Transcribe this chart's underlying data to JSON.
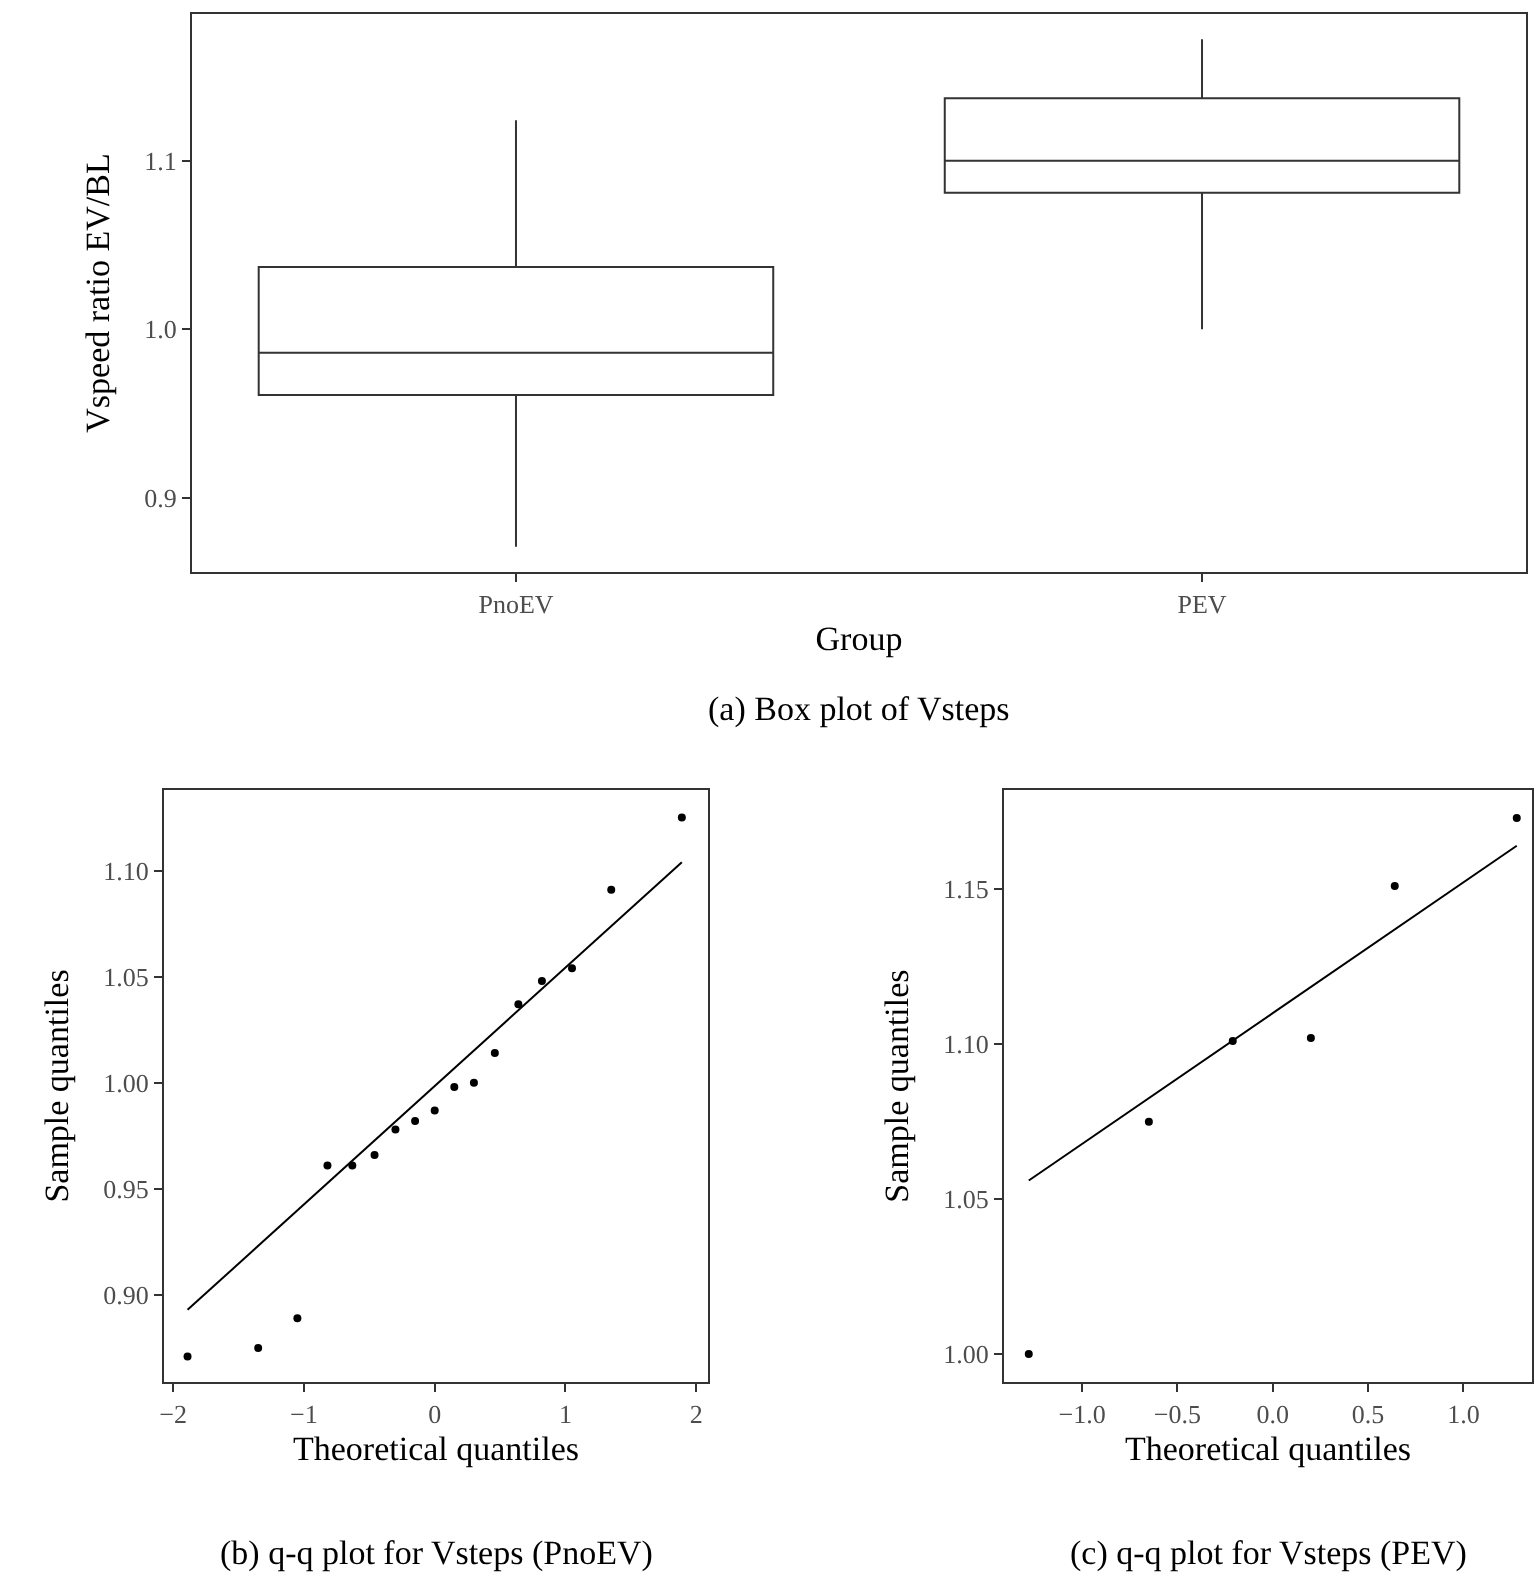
{
  "chart_data": [
    {
      "type": "box",
      "categories": [
        "PnoEV",
        "PEV"
      ],
      "boxes": [
        {
          "low": 0.871,
          "q1": 0.961,
          "median": 0.986,
          "q3": 1.037,
          "high": 1.124
        },
        {
          "low": 1.0,
          "q1": 1.081,
          "median": 1.1,
          "q3": 1.137,
          "high": 1.172
        }
      ],
      "xlabel": "Group",
      "ylabel": "Vspeed ratio EV/BL",
      "ylim": [
        0.856,
        1.187
      ],
      "yticks": [
        0.9,
        {
          "value": 1,
          "label": "1.0"
        },
        1.1
      ],
      "grid": false,
      "annotations": [
        "(a) Box plot of Vsteps"
      ]
    },
    {
      "type": "scatter",
      "xlabel": "Theoretical quantiles",
      "ylabel": "Sample quantiles",
      "xlim": [
        -2.07,
        2.09
      ],
      "xticks": [
        {
          "value": -2,
          "label": "−2"
        },
        {
          "value": -1,
          "label": "−1"
        },
        0,
        1,
        2
      ],
      "ylim": [
        0.859,
        1.138
      ],
      "yticks": [
        {
          "value": 0.9,
          "label": "0.90"
        },
        0.95,
        {
          "value": 1,
          "label": "1.00"
        },
        1.05,
        {
          "value": 1.1,
          "label": "1.10"
        }
      ],
      "grid": false,
      "annotations": [
        "(b) q-q plot for Vsteps (PnoEV)"
      ],
      "series": [
        {
          "type": "scatter",
          "color": "#000000",
          "marker": "circle",
          "x": [
            -1.89,
            -1.35,
            -1.05,
            -0.82,
            -0.63,
            -0.46,
            -0.3,
            -0.15,
            0,
            0.15,
            0.3,
            0.46,
            0.64,
            0.82,
            1.05,
            1.35,
            1.89
          ],
          "values": [
            0.871,
            0.875,
            0.889,
            0.961,
            0.961,
            0.966,
            0.978,
            0.982,
            0.987,
            0.998,
            1.0,
            1.014,
            1.037,
            1.048,
            1.054,
            1.091,
            1.125
          ]
        },
        {
          "type": "line",
          "color": "#000000",
          "marker": "none",
          "x": [
            -1.89,
            1.89
          ],
          "values": [
            0.893,
            1.104
          ]
        }
      ]
    },
    {
      "type": "scatter",
      "xlabel": "Theoretical quantiles",
      "ylabel": "Sample quantiles",
      "xlim": [
        -1.41,
        1.36
      ],
      "xticks": [
        {
          "value": -1,
          "label": "−1.0"
        },
        {
          "value": -0.5,
          "label": "−0.5"
        },
        {
          "value": 0,
          "label": "0.0"
        },
        0.5,
        {
          "value": 1,
          "label": "1.0"
        }
      ],
      "ylim": [
        0.991,
        1.182
      ],
      "yticks": [
        {
          "value": 1,
          "label": "1.00"
        },
        1.05,
        {
          "value": 1.1,
          "label": "1.10"
        },
        1.15
      ],
      "grid": false,
      "annotations": [
        "(c) q-q plot for Vsteps (PEV)"
      ],
      "series": [
        {
          "type": "scatter",
          "color": "#000000",
          "marker": "circle",
          "x": [
            -1.28,
            -0.65,
            -0.21,
            0.2,
            0.64,
            1.28
          ],
          "values": [
            1.0,
            1.075,
            1.101,
            1.102,
            1.151,
            1.173
          ]
        },
        {
          "type": "line",
          "color": "#000000",
          "marker": "none",
          "x": [
            -1.28,
            1.28
          ],
          "values": [
            1.056,
            1.164
          ]
        }
      ]
    }
  ]
}
